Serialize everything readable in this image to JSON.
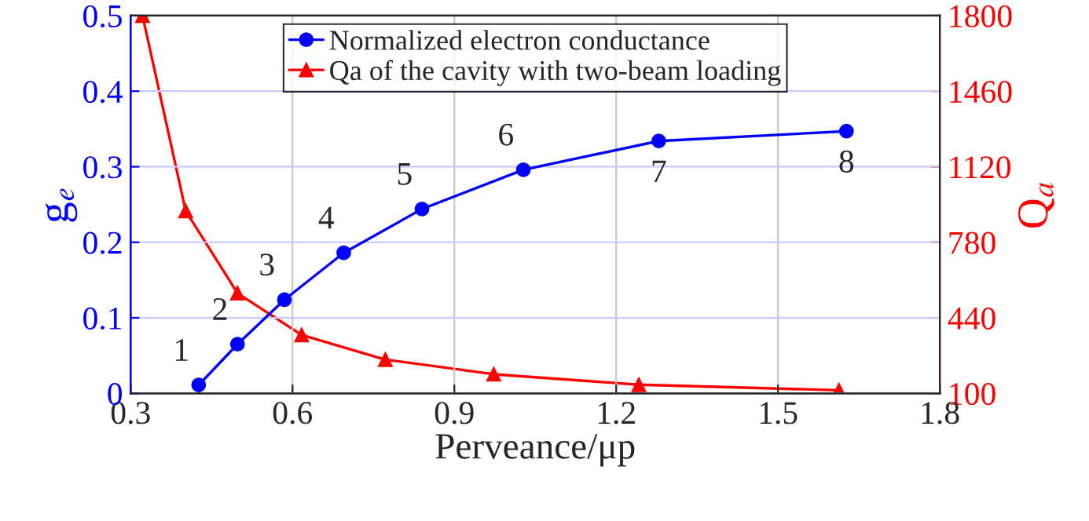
{
  "chart_data": {
    "type": "line",
    "xlabel": "Perveance/μp",
    "ylabel": "g$_{e}$",
    "y2label": "Q$_{a}$",
    "xlim": [
      0.3,
      1.8
    ],
    "xticks": [
      0.3,
      0.6,
      0.9,
      1.2,
      1.5,
      1.8
    ],
    "ylim": [
      0,
      0.5
    ],
    "yticks": [
      0,
      0.1,
      0.2,
      0.3,
      0.4,
      0.5
    ],
    "y2lim": [
      100,
      1800
    ],
    "y2ticks": [
      100,
      440,
      780,
      1120,
      1460,
      1800
    ],
    "grid": true,
    "legend": "top",
    "line_style": "solid",
    "series": [
      {
        "name": "Normalized electron conductance",
        "color": "#0000ff",
        "marker": "circle",
        "x": [
          0.426,
          0.498,
          0.585,
          0.695,
          0.84,
          1.028,
          1.279,
          1.627
        ],
        "values": [
          0.011,
          0.065,
          0.124,
          0.186,
          0.244,
          0.296,
          0.334,
          0.347
        ]
      },
      {
        "name": "Qa of the cavity with two-beam loading",
        "color": "#ff0000",
        "marker": "triangle",
        "axis": "y2",
        "x": [
          0.322,
          0.402,
          0.498,
          0.617,
          0.772,
          0.973,
          1.242,
          1.613
        ],
        "values": [
          1800,
          921,
          551,
          363,
          252,
          186,
          139,
          114
        ]
      }
    ],
    "annotations": [
      {
        "text": "1",
        "x": 0.426,
        "y": 0.011
      },
      {
        "text": "2",
        "x": 0.498,
        "y": 0.065
      },
      {
        "text": "3",
        "x": 0.585,
        "y": 0.124
      },
      {
        "text": "4",
        "x": 0.695,
        "y": 0.186
      },
      {
        "text": "5",
        "x": 0.84,
        "y": 0.244
      },
      {
        "text": "6",
        "x": 1.028,
        "y": 0.296
      },
      {
        "text": "7",
        "x": 1.279,
        "y": 0.334
      },
      {
        "text": "8",
        "x": 1.627,
        "y": 0.347
      }
    ]
  }
}
